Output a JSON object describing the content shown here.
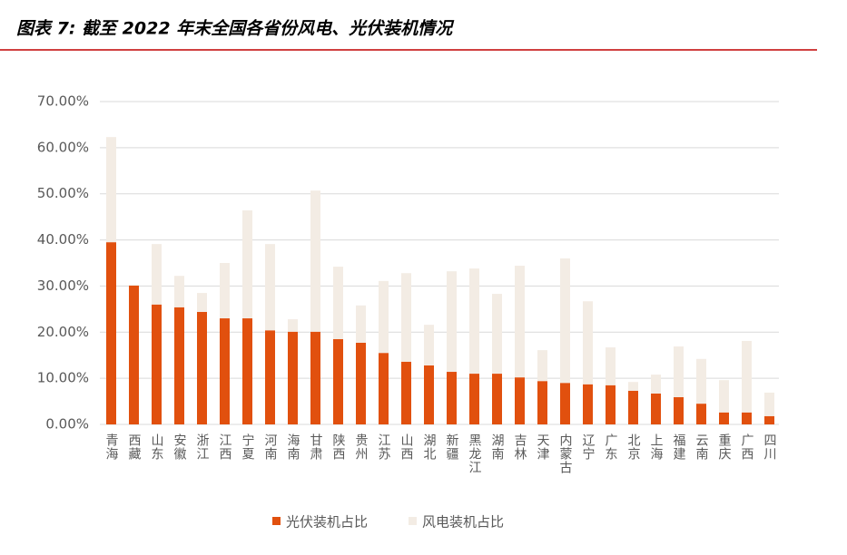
{
  "chart_data": {
    "type": "stacked-bar",
    "title": "图表 7: 截至 2022 年末全国各省份风电、光伏装机情况",
    "categories": [
      "青海",
      "西藏",
      "山东",
      "安徽",
      "浙江",
      "江西",
      "宁夏",
      "河南",
      "海南",
      "甘肃",
      "陕西",
      "贵州",
      "江苏",
      "山西",
      "湖北",
      "新疆",
      "黑龙江",
      "湖南",
      "吉林",
      "天津",
      "内蒙古",
      "辽宁",
      "广东",
      "北京",
      "上海",
      "福建",
      "云南",
      "重庆",
      "广西",
      "四川"
    ],
    "series": [
      {
        "name": "光伏装机占比",
        "color": "#e1500e",
        "values": [
          39.5,
          30.1,
          26.0,
          25.4,
          24.4,
          23.0,
          23.0,
          20.4,
          20.1,
          20.1,
          18.5,
          17.7,
          15.5,
          13.6,
          12.8,
          11.4,
          11.0,
          11.0,
          10.2,
          9.4,
          9.0,
          8.7,
          8.5,
          7.3,
          6.7,
          5.9,
          4.5,
          2.6,
          2.6,
          1.8
        ]
      },
      {
        "name": "风电装机占比",
        "color": "#f3ece4",
        "values": [
          22.8,
          0.2,
          13.1,
          6.8,
          4.1,
          12.0,
          23.4,
          18.7,
          2.7,
          30.6,
          15.7,
          8.1,
          15.6,
          19.2,
          8.8,
          21.8,
          22.8,
          17.3,
          24.2,
          6.7,
          27.0,
          18.0,
          8.2,
          1.9,
          4.1,
          11.0,
          9.7,
          7.0,
          15.5,
          5.1
        ]
      }
    ],
    "ylim": [
      0,
      70
    ],
    "yticks": [
      {
        "value": 0,
        "label": "0.00%"
      },
      {
        "value": 10,
        "label": "10.00%"
      },
      {
        "value": 20,
        "label": "20.00%"
      },
      {
        "value": 30,
        "label": "30.00%"
      },
      {
        "value": 40,
        "label": "40.00%"
      },
      {
        "value": 50,
        "label": "50.00%"
      },
      {
        "value": 60,
        "label": "60.00%"
      },
      {
        "value": 70,
        "label": "70.00%"
      }
    ],
    "grid": true,
    "legend": "bottom"
  }
}
